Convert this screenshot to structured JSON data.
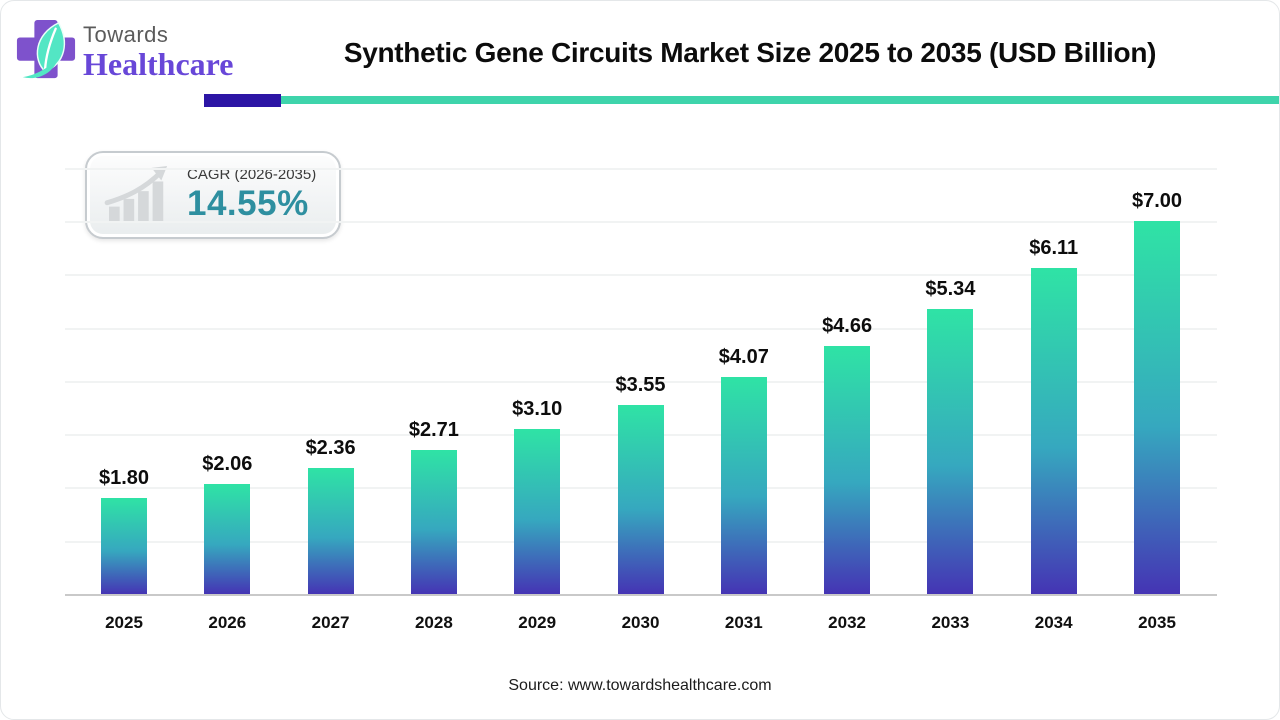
{
  "logo": {
    "brand_top": "Towards",
    "brand_bottom": "Healthcare"
  },
  "header": {
    "title": "Synthetic Gene Circuits Market Size 2025 to 2035 (USD Billion)"
  },
  "badge": {
    "label": "CAGR (2026-2035)",
    "value": "14.55%"
  },
  "footer": {
    "source": "Source: www.towardshealthcare.com"
  },
  "colors": {
    "bar_gradient_top": "#2fe3a5",
    "bar_gradient_mid": "#36a8bf",
    "bar_gradient_bottom": "#4534b4",
    "accent_purple": "#2c15a5",
    "accent_teal": "#3ed4ab",
    "brand_purple": "#6847d8",
    "badge_value_teal": "#2e8fa0",
    "gridline": "#f1f3f3",
    "axis": "#c9c9c9"
  },
  "chart_data": {
    "type": "bar",
    "title": "Synthetic Gene Circuits Market Size 2025 to 2035 (USD Billion)",
    "categories": [
      "2025",
      "2026",
      "2027",
      "2028",
      "2029",
      "2030",
      "2031",
      "2032",
      "2033",
      "2034",
      "2035"
    ],
    "values": [
      1.8,
      2.06,
      2.36,
      2.71,
      3.1,
      3.55,
      4.07,
      4.66,
      5.34,
      6.11,
      7.0
    ],
    "labels": [
      "$1.80",
      "$2.06",
      "$2.36",
      "$2.71",
      "$3.10",
      "$3.55",
      "$4.07",
      "$4.66",
      "$5.34",
      "$6.11",
      "$7.00"
    ],
    "xlabel": "",
    "ylabel": "",
    "unit": "USD Billion",
    "ylim": [
      0,
      8
    ],
    "gridlines": [
      1,
      2,
      3,
      4,
      5,
      6,
      7,
      8
    ],
    "grid": "horizontal",
    "legend_position": "none"
  }
}
